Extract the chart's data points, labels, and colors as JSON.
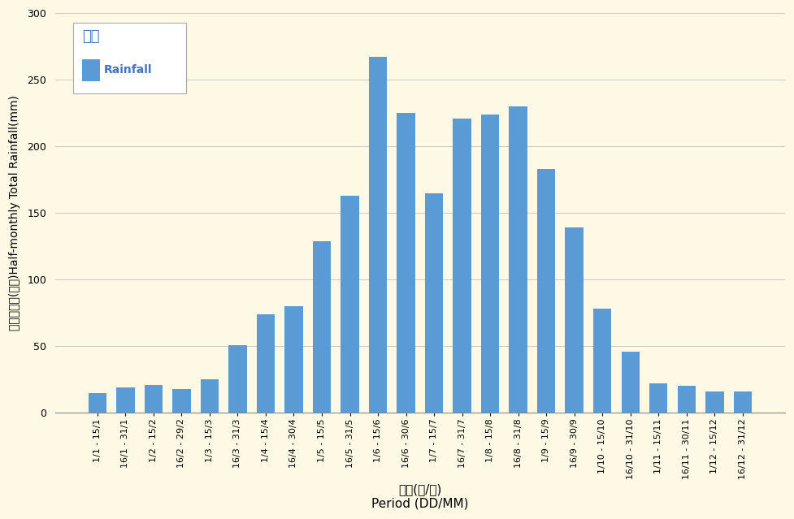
{
  "categories": [
    "1/1 - 15/1",
    "16/1 - 31/1",
    "1/2 - 15/2",
    "16/2 - 29/2",
    "1/3 - 15/3",
    "16/3 - 31/3",
    "1/4 - 15/4",
    "16/4 - 30/4",
    "1/5 - 15/5",
    "16/5 - 31/5",
    "1/6 - 15/6",
    "16/6 - 30/6",
    "1/7 - 15/7",
    "16/7 - 31/7",
    "1/8 - 15/8",
    "16/8 - 31/8",
    "1/9 - 15/9",
    "16/9 - 30/9",
    "1/10 - 15/10",
    "16/10 - 31/10",
    "1/11 - 15/11",
    "16/11 - 30/11",
    "1/12 - 15/12",
    "16/12 - 31/12"
  ],
  "values": [
    15,
    19,
    21,
    18,
    25,
    51,
    74,
    80,
    129,
    163,
    267,
    225,
    165,
    221,
    224,
    230,
    183,
    139,
    78,
    46,
    22,
    20,
    16,
    16
  ],
  "bar_color": "#5b9bd5",
  "background_color": "#fef9e4",
  "ylim": [
    0,
    300
  ],
  "yticks": [
    0,
    50,
    100,
    150,
    200,
    250,
    300
  ],
  "ylabel_chinese": "半月總雨量(毫米)",
  "ylabel_english": "Half-monthly Total Rainfall(mm)",
  "xlabel_chinese": "期間(日/月)",
  "xlabel_english": "Period (DD/MM)",
  "legend_chinese": "雨量",
  "legend_english": "Rainfall",
  "legend_chinese_color": "#4472c4",
  "legend_english_color": "#4472c4",
  "grid_color": "#c8c8c8",
  "tick_label_size": 8,
  "ylabel_size": 10,
  "xlabel_size": 11
}
